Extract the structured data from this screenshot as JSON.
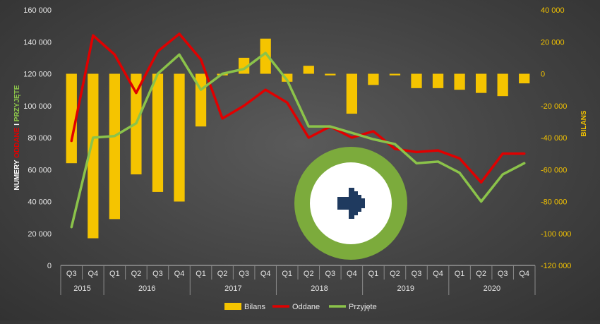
{
  "chart_data": {
    "type": "bar+line",
    "categories": [
      "Q3",
      "Q4",
      "Q1",
      "Q2",
      "Q3",
      "Q4",
      "Q1",
      "Q2",
      "Q3",
      "Q4",
      "Q1",
      "Q2",
      "Q3",
      "Q4",
      "Q1",
      "Q2",
      "Q3",
      "Q4",
      "Q1",
      "Q2",
      "Q3",
      "Q4"
    ],
    "years": [
      {
        "label": "2015",
        "span": 2
      },
      {
        "label": "2016",
        "span": 4
      },
      {
        "label": "2017",
        "span": 4
      },
      {
        "label": "2018",
        "span": 4
      },
      {
        "label": "2019",
        "span": 4
      },
      {
        "label": "2020",
        "span": 4
      }
    ],
    "left_axis": {
      "title_parts": [
        {
          "text": "NUMERY ",
          "color": "#ffffff"
        },
        {
          "text": "ODDANE",
          "color": "#e00000"
        },
        {
          "text": " I ",
          "color": "#ffffff"
        },
        {
          "text": "PRZYJĘTE",
          "color": "#8bc34a"
        }
      ],
      "ylim": [
        0,
        160000
      ],
      "ticks": [
        "0",
        "20 000",
        "40 000",
        "60 000",
        "80 000",
        "100 000",
        "120 000",
        "140 000",
        "160 000"
      ]
    },
    "right_axis": {
      "title": "BILANS",
      "ylim": [
        -120000,
        40000
      ],
      "ticks": [
        "-120 000",
        "-100 000",
        "-80 000",
        "-60 000",
        "-40 000",
        "-20 000",
        "0",
        "20 000",
        "40 000"
      ]
    },
    "series": [
      {
        "name": "Bilans",
        "type": "bar",
        "axis": "right",
        "color": "#f5c400",
        "values": [
          -56000,
          -103000,
          -91000,
          -63000,
          -74000,
          -80000,
          -33000,
          -1000,
          10000,
          22000,
          -5000,
          5000,
          -1000,
          -25000,
          -7000,
          -1000,
          -9000,
          -9000,
          -10000,
          -12000,
          -14000,
          -6000
        ]
      },
      {
        "name": "Oddane",
        "type": "line",
        "axis": "left",
        "color": "#e00000",
        "values": [
          78000,
          144000,
          132000,
          108000,
          134000,
          145000,
          129000,
          92000,
          100000,
          110000,
          102000,
          80000,
          87000,
          80000,
          84000,
          73000,
          71000,
          72000,
          67000,
          52000,
          70000,
          70000
        ]
      },
      {
        "name": "Przyjęte",
        "type": "line",
        "axis": "left",
        "color": "#8bc34a",
        "values": [
          24000,
          80000,
          81000,
          89000,
          120000,
          132000,
          110000,
          120000,
          123000,
          133000,
          116000,
          87000,
          87000,
          83000,
          79000,
          76000,
          64000,
          65000,
          58000,
          40000,
          57000,
          64000
        ]
      }
    ],
    "legend": {
      "position": "bottom",
      "items": [
        "Bilans",
        "Oddane",
        "Przyjęte"
      ]
    },
    "grid": false
  },
  "badge": {
    "icon": "right-arrow-icon",
    "ring_color": "#7cab3c",
    "inner_color": "#ffffff",
    "arrow_color": "#1f3a5f"
  }
}
